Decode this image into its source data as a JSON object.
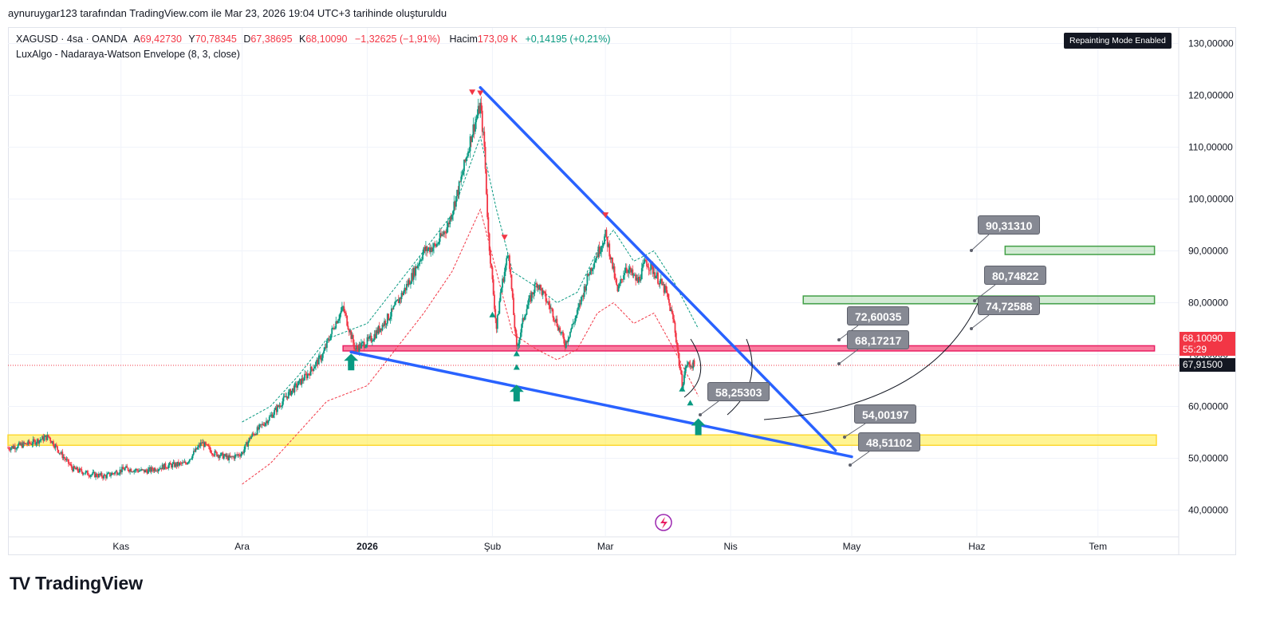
{
  "header": {
    "note": "aynuruygar123 tarafından TradingView.com ile Mar 23, 2026 19:04 UTC+3 tarihinde oluşturuldu"
  },
  "legend": {
    "symbol": "XAGUSD · 4sa · OANDA",
    "open_label": "A",
    "open": "69,42730",
    "high_label": "Y",
    "high": "70,78345",
    "low_label": "D",
    "low": "67,38695",
    "close_label": "K",
    "close": "68,10090",
    "change": "−1,32625 (−1,91%)",
    "volume_label": "Hacim",
    "volume": "173,09 K",
    "volume_change": "+0,14195 (+0,21%)",
    "indicator": "LuxAlgo - Nadaraya-Watson Envelope (8, 3, close)"
  },
  "badge": {
    "repaint": "Repainting Mode Enabled"
  },
  "price_tags": {
    "last_price": "68,10090",
    "countdown": "55:29",
    "dotted_line_price": "67,91500"
  },
  "annotations": [
    {
      "text": "90,31310",
      "price": 90.3131
    },
    {
      "text": "80,74822",
      "price": 80.74822
    },
    {
      "text": "74,72588",
      "price": 74.72588
    },
    {
      "text": "72,60035",
      "price": 72.60035
    },
    {
      "text": "68,17217",
      "price": 68.17217
    },
    {
      "text": "58,25303",
      "price": 58.25303
    },
    {
      "text": "54,00197",
      "price": 54.00197
    },
    {
      "text": "48,51102",
      "price": 48.51102
    }
  ],
  "footer": {
    "brand": "TradingView"
  },
  "colors": {
    "candle_up": "#089981",
    "candle_down": "#f23645",
    "trendline": "#2962ff",
    "support_zone": "#ffeb3b",
    "resistance_zone": "#f7527f",
    "target_zone": "#81c784",
    "label_bg": "#868993",
    "signal_up": "#089981",
    "signal_down": "#f23645"
  },
  "chart_data": {
    "type": "candlestick",
    "symbol": "XAGUSD",
    "timeframe": "4sa",
    "ylim": [
      35,
      133
    ],
    "y_ticks": [
      "130,00000",
      "120,00000",
      "110,00000",
      "100,00000",
      "90,00000",
      "80,00000",
      "70,00000",
      "60,00000",
      "50,00000",
      "40,00000"
    ],
    "y_tick_values": [
      130,
      120,
      110,
      100,
      90,
      80,
      70,
      60,
      50,
      40
    ],
    "x_labels": [
      "Kas",
      "Ara",
      "2026",
      "Şub",
      "Mar",
      "Nis",
      "May",
      "Haz",
      "Tem"
    ],
    "x_label_dates": [
      "2025-11-01",
      "2025-12-01",
      "2026-01-01",
      "2026-02-01",
      "2026-03-01",
      "2026-04-01",
      "2026-05-01",
      "2026-06-01",
      "2026-07-01"
    ],
    "x_range_dates": [
      "2025-10-04",
      "2026-07-21"
    ],
    "price_path": [
      [
        "2025-10-04",
        52
      ],
      [
        "2025-10-10",
        53
      ],
      [
        "2025-10-14",
        54.2
      ],
      [
        "2025-10-17",
        51
      ],
      [
        "2025-10-20",
        48
      ],
      [
        "2025-10-24",
        47
      ],
      [
        "2025-10-28",
        46.5
      ],
      [
        "2025-11-02",
        48
      ],
      [
        "2025-11-07",
        47.5
      ],
      [
        "2025-11-12",
        48.5
      ],
      [
        "2025-11-17",
        49
      ],
      [
        "2025-11-21",
        53
      ],
      [
        "2025-11-24",
        51
      ],
      [
        "2025-11-28",
        50
      ],
      [
        "2025-12-01",
        51
      ],
      [
        "2025-12-03",
        54
      ],
      [
        "2025-12-08",
        58
      ],
      [
        "2025-12-12",
        62
      ],
      [
        "2025-12-17",
        66
      ],
      [
        "2025-12-21",
        70
      ],
      [
        "2025-12-24",
        76
      ],
      [
        "2025-12-26",
        79
      ],
      [
        "2025-12-29",
        71
      ],
      [
        "2026-01-02",
        73
      ],
      [
        "2026-01-07",
        78
      ],
      [
        "2026-01-12",
        85
      ],
      [
        "2026-01-15",
        90
      ],
      [
        "2026-01-18",
        91
      ],
      [
        "2026-01-21",
        95
      ],
      [
        "2026-01-24",
        103
      ],
      [
        "2026-01-27",
        113
      ],
      [
        "2026-01-29",
        118
      ],
      [
        "2026-01-30",
        110
      ],
      [
        "2026-01-31",
        93
      ],
      [
        "2026-02-02",
        75
      ],
      [
        "2026-02-03",
        82
      ],
      [
        "2026-02-05",
        90
      ],
      [
        "2026-02-06",
        80
      ],
      [
        "2026-02-07",
        71
      ],
      [
        "2026-02-09",
        78
      ],
      [
        "2026-02-12",
        84
      ],
      [
        "2026-02-16",
        78
      ],
      [
        "2026-02-19",
        72
      ],
      [
        "2026-02-22",
        78
      ],
      [
        "2026-02-25",
        86
      ],
      [
        "2026-03-01",
        93
      ],
      [
        "2026-03-02",
        90
      ],
      [
        "2026-03-04",
        82
      ],
      [
        "2026-03-06",
        87
      ],
      [
        "2026-03-09",
        84
      ],
      [
        "2026-03-11",
        88
      ],
      [
        "2026-03-13",
        86
      ],
      [
        "2026-03-16",
        82
      ],
      [
        "2026-03-18",
        76
      ],
      [
        "2026-03-20",
        64
      ],
      [
        "2026-03-21",
        68
      ],
      [
        "2026-03-23",
        68.1
      ]
    ],
    "envelope_upper": [
      [
        "2025-12-01",
        57
      ],
      [
        "2025-12-08",
        60
      ],
      [
        "2025-12-15",
        66
      ],
      [
        "2025-12-22",
        73
      ],
      [
        "2026-01-01",
        76
      ],
      [
        "2026-01-08",
        83
      ],
      [
        "2026-01-15",
        90
      ],
      [
        "2026-01-22",
        97
      ],
      [
        "2026-01-29",
        112
      ],
      [
        "2026-02-02",
        98
      ],
      [
        "2026-02-06",
        86
      ],
      [
        "2026-02-12",
        83
      ],
      [
        "2026-02-17",
        80
      ],
      [
        "2026-02-22",
        82
      ],
      [
        "2026-02-27",
        90
      ],
      [
        "2026-03-03",
        94
      ],
      [
        "2026-03-08",
        88
      ],
      [
        "2026-03-13",
        90
      ],
      [
        "2026-03-18",
        84
      ],
      [
        "2026-03-24",
        75
      ]
    ],
    "envelope_lower": [
      [
        "2025-12-01",
        45
      ],
      [
        "2025-12-08",
        49
      ],
      [
        "2025-12-15",
        55
      ],
      [
        "2025-12-22",
        61
      ],
      [
        "2026-01-01",
        64
      ],
      [
        "2026-01-08",
        71
      ],
      [
        "2026-01-15",
        78
      ],
      [
        "2026-01-22",
        86
      ],
      [
        "2026-01-29",
        98
      ],
      [
        "2026-02-02",
        86
      ],
      [
        "2026-02-06",
        74
      ],
      [
        "2026-02-12",
        71
      ],
      [
        "2026-02-17",
        69
      ],
      [
        "2026-02-22",
        71
      ],
      [
        "2026-02-27",
        78
      ],
      [
        "2026-03-03",
        80
      ],
      [
        "2026-03-08",
        76
      ],
      [
        "2026-03-13",
        78
      ],
      [
        "2026-03-18",
        71
      ],
      [
        "2026-03-24",
        62
      ]
    ],
    "trendlines": [
      {
        "name": "upper",
        "from": [
          "2026-01-29",
          121.5
        ],
        "to": [
          "2026-04-27",
          51.5
        ]
      },
      {
        "name": "lower",
        "from": [
          "2025-12-28",
          70.5
        ],
        "to": [
          "2026-05-01",
          50.3
        ]
      }
    ],
    "zones": [
      {
        "name": "support",
        "from": "2025-10-04",
        "to": "2026-07-21",
        "y": [
          52.5,
          54.5
        ]
      },
      {
        "name": "resistance",
        "from": "2025-12-26",
        "to": "2026-07-15",
        "y": [
          70.7,
          71.7
        ]
      },
      {
        "name": "target-1",
        "from": "2026-04-19",
        "to": "2026-07-15",
        "y": [
          79.8,
          81.3
        ]
      },
      {
        "name": "target-2",
        "from": "2026-06-08",
        "to": "2026-07-15",
        "y": [
          89.3,
          90.9
        ]
      }
    ],
    "signals": [
      {
        "dir": "down",
        "date": "2026-01-27",
        "price": 120.5
      },
      {
        "dir": "down",
        "date": "2026-01-29",
        "price": 120.3
      },
      {
        "dir": "down",
        "date": "2026-02-04",
        "price": 92.5
      },
      {
        "dir": "down",
        "date": "2026-03-01",
        "price": 96.8
      },
      {
        "dir": "up",
        "date": "2026-02-01",
        "price": 77.8
      },
      {
        "dir": "up",
        "date": "2026-02-07",
        "price": 70.3
      },
      {
        "dir": "up",
        "date": "2026-02-07",
        "price": 67.7
      },
      {
        "dir": "up",
        "date": "2026-03-20",
        "price": 63.5
      },
      {
        "dir": "up",
        "date": "2026-03-22",
        "price": 60.8
      }
    ],
    "arrows": [
      {
        "date": "2025-12-28",
        "price": 68.5
      },
      {
        "date": "2026-02-07",
        "price": 62.5
      },
      {
        "date": "2026-03-24",
        "price": 56.0
      }
    ],
    "last_price": 68.1009,
    "dotted_price": 67.915
  }
}
